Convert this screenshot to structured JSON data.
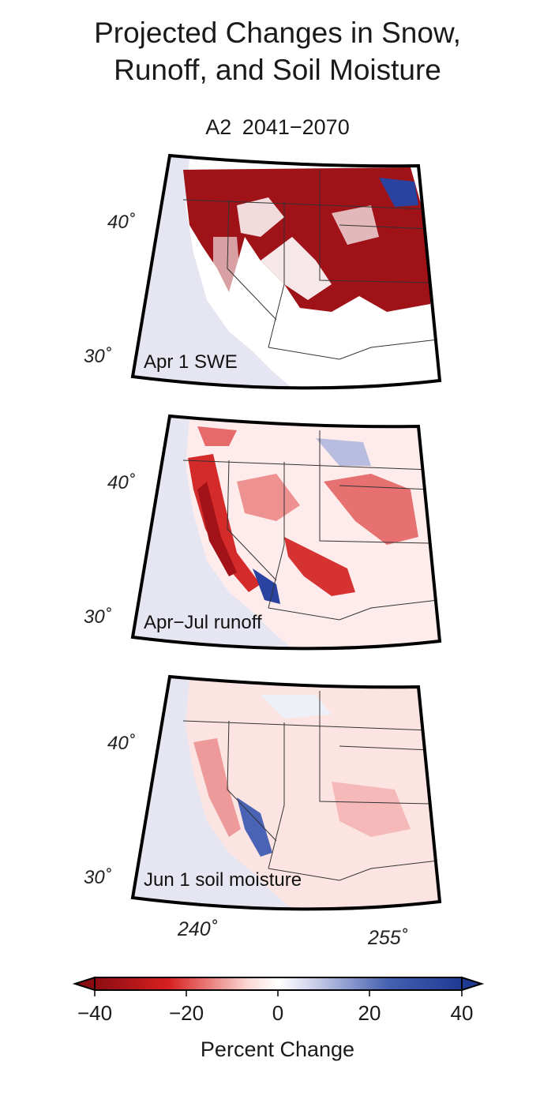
{
  "figure": {
    "title_line1": "Projected Changes in Snow,",
    "title_line2": "Runoff, and Soil Moisture",
    "subtitle": "A2  2041−2070"
  },
  "panels": [
    {
      "label": "Apr 1 SWE",
      "lat_high": "40˚",
      "lat_low": "30˚"
    },
    {
      "label": "Apr−Jul runoff",
      "lat_high": "40˚",
      "lat_low": "30˚"
    },
    {
      "label": "Jun 1 soil moisture",
      "lat_high": "40˚",
      "lat_low": "30˚"
    }
  ],
  "lon_labels": {
    "a": "240˚",
    "b": "255˚"
  },
  "colorbar": {
    "ticks": [
      "−40",
      "−20",
      "0",
      "20",
      "40"
    ],
    "title": "Percent Change",
    "min": -40,
    "max": 40,
    "colors": {
      "neg": "#8b0d13",
      "mid": "#ffffff",
      "pos": "#1f3a93"
    }
  },
  "colors": {
    "ocean": "#e6e6f2",
    "frame": "#000000",
    "border": "#333333"
  }
}
